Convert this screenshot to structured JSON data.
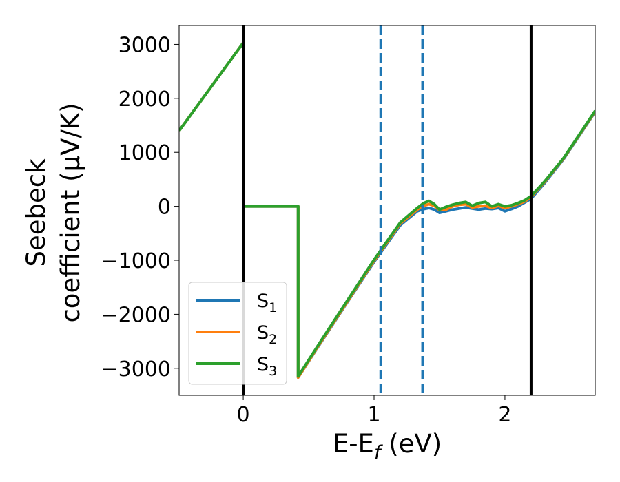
{
  "chart_data": {
    "type": "line",
    "xlabel": "E-E",
    "xlabel_sub": "f",
    "xlabel_unit": " (eV)",
    "ylabel_line1": "Seebeck",
    "ylabel_line2": "coefficient  (μV/K)",
    "xlim": [
      -0.49,
      2.69
    ],
    "ylim": [
      -3500,
      3350
    ],
    "xticks": [
      0,
      1,
      2
    ],
    "xtick_labels": [
      "0",
      "1",
      "2"
    ],
    "yticks": [
      3000,
      2000,
      1000,
      0,
      -1000,
      -2000,
      -3000
    ],
    "ytick_labels": [
      "3000",
      "2000",
      "1000",
      "0",
      "−1000",
      "−2000",
      "−3000"
    ],
    "grid": false,
    "legend_position": "lower-left",
    "vlines": [
      {
        "x": 0.0,
        "color": "#000000",
        "style": "solid"
      },
      {
        "x": 2.2,
        "color": "#000000",
        "style": "solid"
      },
      {
        "x": 1.05,
        "color": "#1f77b4",
        "style": "dashed"
      },
      {
        "x": 1.37,
        "color": "#1f77b4",
        "style": "dashed"
      }
    ],
    "series": [
      {
        "name": "S",
        "sub": "1",
        "color": "#1f77b4",
        "points": [
          [
            -0.49,
            1400
          ],
          [
            0.0,
            3030
          ],
          [
            0.0,
            0
          ],
          [
            0.42,
            0
          ],
          [
            0.42,
            -3170
          ],
          [
            0.6,
            -2500
          ],
          [
            0.8,
            -1760
          ],
          [
            1.0,
            -1030
          ],
          [
            1.2,
            -350
          ],
          [
            1.33,
            -90
          ],
          [
            1.38,
            -50
          ],
          [
            1.42,
            -30
          ],
          [
            1.46,
            -60
          ],
          [
            1.5,
            -120
          ],
          [
            1.55,
            -90
          ],
          [
            1.6,
            -60
          ],
          [
            1.65,
            -40
          ],
          [
            1.7,
            -20
          ],
          [
            1.75,
            -40
          ],
          [
            1.8,
            -60
          ],
          [
            1.85,
            -40
          ],
          [
            1.9,
            -50
          ],
          [
            1.95,
            -30
          ],
          [
            2.0,
            -90
          ],
          [
            2.05,
            -50
          ],
          [
            2.1,
            0
          ],
          [
            2.15,
            70
          ],
          [
            2.2,
            140
          ],
          [
            2.3,
            420
          ],
          [
            2.45,
            880
          ],
          [
            2.69,
            1750
          ]
        ]
      },
      {
        "name": "S",
        "sub": "2",
        "color": "#ff7f0e",
        "points": [
          [
            -0.49,
            1400
          ],
          [
            0.0,
            3030
          ],
          [
            0.0,
            0
          ],
          [
            0.42,
            0
          ],
          [
            0.42,
            -3170
          ],
          [
            0.6,
            -2490
          ],
          [
            0.8,
            -1750
          ],
          [
            1.0,
            -1010
          ],
          [
            1.2,
            -320
          ],
          [
            1.33,
            -60
          ],
          [
            1.38,
            10
          ],
          [
            1.42,
            40
          ],
          [
            1.46,
            10
          ],
          [
            1.5,
            -70
          ],
          [
            1.55,
            -60
          ],
          [
            1.6,
            0
          ],
          [
            1.65,
            30
          ],
          [
            1.7,
            40
          ],
          [
            1.75,
            -20
          ],
          [
            1.8,
            0
          ],
          [
            1.85,
            10
          ],
          [
            1.9,
            -30
          ],
          [
            1.95,
            10
          ],
          [
            2.0,
            -30
          ],
          [
            2.05,
            0
          ],
          [
            2.1,
            40
          ],
          [
            2.15,
            90
          ],
          [
            2.2,
            170
          ],
          [
            2.3,
            440
          ],
          [
            2.45,
            890
          ],
          [
            2.69,
            1760
          ]
        ]
      },
      {
        "name": "S",
        "sub": "3",
        "color": "#2ca02c",
        "points": [
          [
            -0.49,
            1400
          ],
          [
            0.0,
            3030
          ],
          [
            0.0,
            0
          ],
          [
            0.42,
            0
          ],
          [
            0.42,
            -3150
          ],
          [
            0.6,
            -2470
          ],
          [
            0.8,
            -1730
          ],
          [
            1.0,
            -990
          ],
          [
            1.2,
            -300
          ],
          [
            1.33,
            -30
          ],
          [
            1.38,
            60
          ],
          [
            1.42,
            100
          ],
          [
            1.46,
            40
          ],
          [
            1.5,
            -60
          ],
          [
            1.55,
            -10
          ],
          [
            1.6,
            30
          ],
          [
            1.65,
            60
          ],
          [
            1.7,
            80
          ],
          [
            1.75,
            10
          ],
          [
            1.8,
            60
          ],
          [
            1.85,
            80
          ],
          [
            1.9,
            0
          ],
          [
            1.95,
            40
          ],
          [
            2.0,
            0
          ],
          [
            2.05,
            20
          ],
          [
            2.1,
            60
          ],
          [
            2.15,
            110
          ],
          [
            2.2,
            190
          ],
          [
            2.3,
            450
          ],
          [
            2.45,
            900
          ],
          [
            2.69,
            1770
          ]
        ]
      }
    ]
  }
}
